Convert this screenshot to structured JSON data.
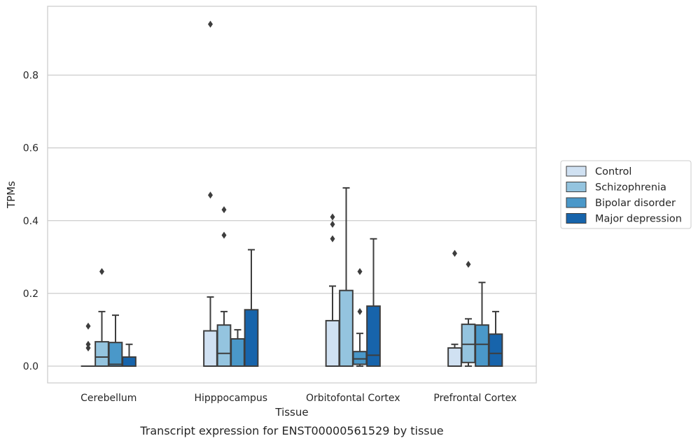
{
  "chart_data": {
    "type": "box",
    "title": "",
    "caption": "Transcript expression for ENST00000561529 by tissue",
    "xlabel": "Tissue",
    "ylabel": "TPMs",
    "ylim": [
      -0.045,
      0.99
    ],
    "yticks": [
      0.0,
      0.2,
      0.4,
      0.6,
      0.8
    ],
    "ytick_labels": [
      "0.0",
      "0.2",
      "0.4",
      "0.6",
      "0.8"
    ],
    "grid": "horizontal",
    "legend_position": "right",
    "categories": [
      "Cerebellum",
      "Hipppocampus",
      "Orbitofontal Cortex",
      "Prefrontal Cortex"
    ],
    "series": [
      {
        "name": "Control",
        "color": "#d0e1f2",
        "boxes": [
          {
            "whislo": 0,
            "q1": 0,
            "med": 0,
            "q3": 0,
            "whishi": 0,
            "fliers": [
              0.05,
              0.06,
              0.11
            ]
          },
          {
            "whislo": 0,
            "q1": 0,
            "med": 0,
            "q3": 0.097,
            "whishi": 0.19,
            "fliers": [
              0.47,
              0.94
            ]
          },
          {
            "whislo": 0,
            "q1": 0,
            "med": 0,
            "q3": 0.125,
            "whishi": 0.22,
            "fliers": [
              0.35,
              0.39,
              0.41
            ]
          },
          {
            "whislo": 0,
            "q1": 0,
            "med": 0,
            "q3": 0.05,
            "whishi": 0.06,
            "fliers": [
              0.31
            ]
          }
        ]
      },
      {
        "name": "Schizophrenia",
        "color": "#94c4df",
        "boxes": [
          {
            "whislo": 0,
            "q1": 0,
            "med": 0.025,
            "q3": 0.067,
            "whishi": 0.15,
            "fliers": [
              0.26
            ]
          },
          {
            "whislo": 0,
            "q1": 0,
            "med": 0.035,
            "q3": 0.113,
            "whishi": 0.15,
            "fliers": [
              0.36,
              0.43
            ]
          },
          {
            "whislo": 0,
            "q1": 0,
            "med": 0,
            "q3": 0.208,
            "whishi": 0.49,
            "fliers": []
          },
          {
            "whislo": 0,
            "q1": 0.01,
            "med": 0.06,
            "q3": 0.115,
            "whishi": 0.13,
            "fliers": [
              0.28
            ]
          }
        ]
      },
      {
        "name": "Bipolar disorder",
        "color": "#4a98c9",
        "boxes": [
          {
            "whislo": 0,
            "q1": 0,
            "med": 0.005,
            "q3": 0.065,
            "whishi": 0.14,
            "fliers": []
          },
          {
            "whislo": 0,
            "q1": 0,
            "med": 0,
            "q3": 0.075,
            "whishi": 0.1,
            "fliers": []
          },
          {
            "whislo": 0,
            "q1": 0.005,
            "med": 0.02,
            "q3": 0.04,
            "whishi": 0.09,
            "fliers": [
              0.15,
              0.26
            ]
          },
          {
            "whislo": 0,
            "q1": 0,
            "med": 0.06,
            "q3": 0.113,
            "whishi": 0.23,
            "fliers": []
          }
        ]
      },
      {
        "name": "Major depression",
        "color": "#1764ab",
        "boxes": [
          {
            "whislo": 0,
            "q1": 0,
            "med": 0,
            "q3": 0.025,
            "whishi": 0.06,
            "fliers": []
          },
          {
            "whislo": 0,
            "q1": 0,
            "med": 0,
            "q3": 0.155,
            "whishi": 0.32,
            "fliers": []
          },
          {
            "whislo": 0,
            "q1": 0,
            "med": 0.03,
            "q3": 0.165,
            "whishi": 0.35,
            "fliers": []
          },
          {
            "whislo": 0,
            "q1": 0,
            "med": 0.035,
            "q3": 0.088,
            "whishi": 0.15,
            "fliers": []
          }
        ]
      }
    ]
  }
}
